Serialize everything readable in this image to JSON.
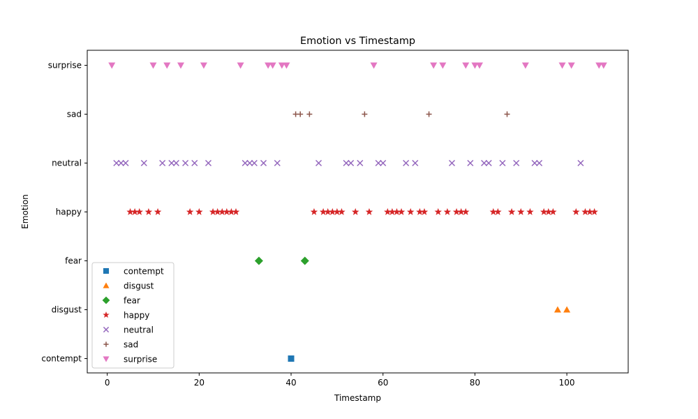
{
  "chart_data": {
    "type": "scatter",
    "title": "Emotion vs Timestamp",
    "xlabel": "Timestamp",
    "ylabel": "Emotion",
    "xlim": [
      -4.35,
      113.35
    ],
    "xticks": [
      0,
      20,
      40,
      60,
      80,
      100
    ],
    "categories": [
      "contempt",
      "disgust",
      "fear",
      "happy",
      "neutral",
      "sad",
      "surprise"
    ],
    "grid": false,
    "legend_position": "lower-left",
    "series": [
      {
        "name": "contempt",
        "marker": "square",
        "color": "#1f77b4",
        "x": [
          40
        ]
      },
      {
        "name": "disgust",
        "marker": "triangle-up",
        "color": "#ff7f0e",
        "x": [
          98,
          100
        ]
      },
      {
        "name": "fear",
        "marker": "diamond",
        "color": "#2ca02c",
        "x": [
          33,
          43
        ]
      },
      {
        "name": "happy",
        "marker": "star",
        "color": "#d62728",
        "x": [
          5,
          6,
          7,
          9,
          11,
          18,
          20,
          23,
          24,
          25,
          26,
          27,
          28,
          45,
          47,
          48,
          49,
          50,
          51,
          54,
          57,
          61,
          62,
          63,
          64,
          66,
          68,
          69,
          72,
          74,
          76,
          77,
          78,
          84,
          85,
          88,
          90,
          92,
          95,
          96,
          97,
          102,
          104,
          105,
          106
        ]
      },
      {
        "name": "neutral",
        "marker": "x",
        "color": "#9467bd",
        "x": [
          2,
          3,
          4,
          8,
          12,
          14,
          15,
          17,
          19,
          22,
          30,
          31,
          32,
          34,
          37,
          46,
          52,
          53,
          55,
          59,
          60,
          65,
          67,
          75,
          79,
          82,
          83,
          86,
          89,
          93,
          94,
          103
        ]
      },
      {
        "name": "sad",
        "marker": "plus",
        "color": "#8c564b",
        "x": [
          41,
          42,
          44,
          56,
          70,
          87
        ]
      },
      {
        "name": "surprise",
        "marker": "triangle-down",
        "color": "#e377c2",
        "x": [
          1,
          10,
          13,
          16,
          21,
          29,
          35,
          36,
          38,
          39,
          58,
          71,
          73,
          78,
          80,
          81,
          91,
          99,
          101,
          107,
          108
        ]
      }
    ]
  }
}
